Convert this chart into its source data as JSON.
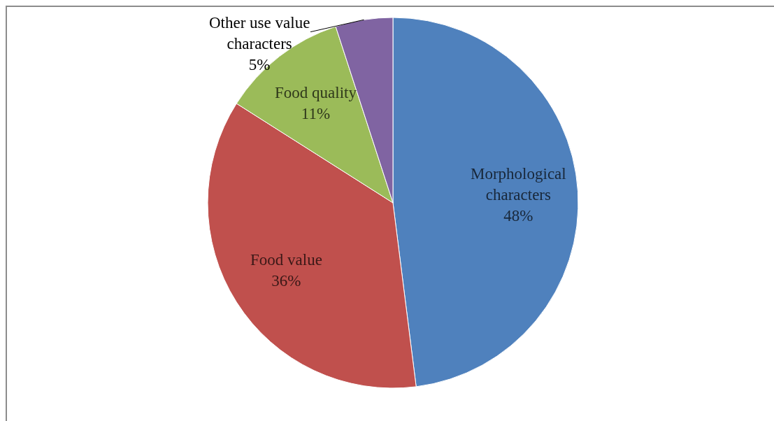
{
  "chart_data": {
    "type": "pie",
    "categories": [
      "Morphological characters",
      "Food value",
      "Food quality",
      "Other use value characters"
    ],
    "values": [
      48,
      36,
      11,
      5
    ],
    "colors": [
      "#4f81bd",
      "#c0504d",
      "#9bbb59",
      "#8064a2"
    ],
    "value_labels": [
      "48%",
      "36%",
      "11%",
      "5%"
    ]
  }
}
